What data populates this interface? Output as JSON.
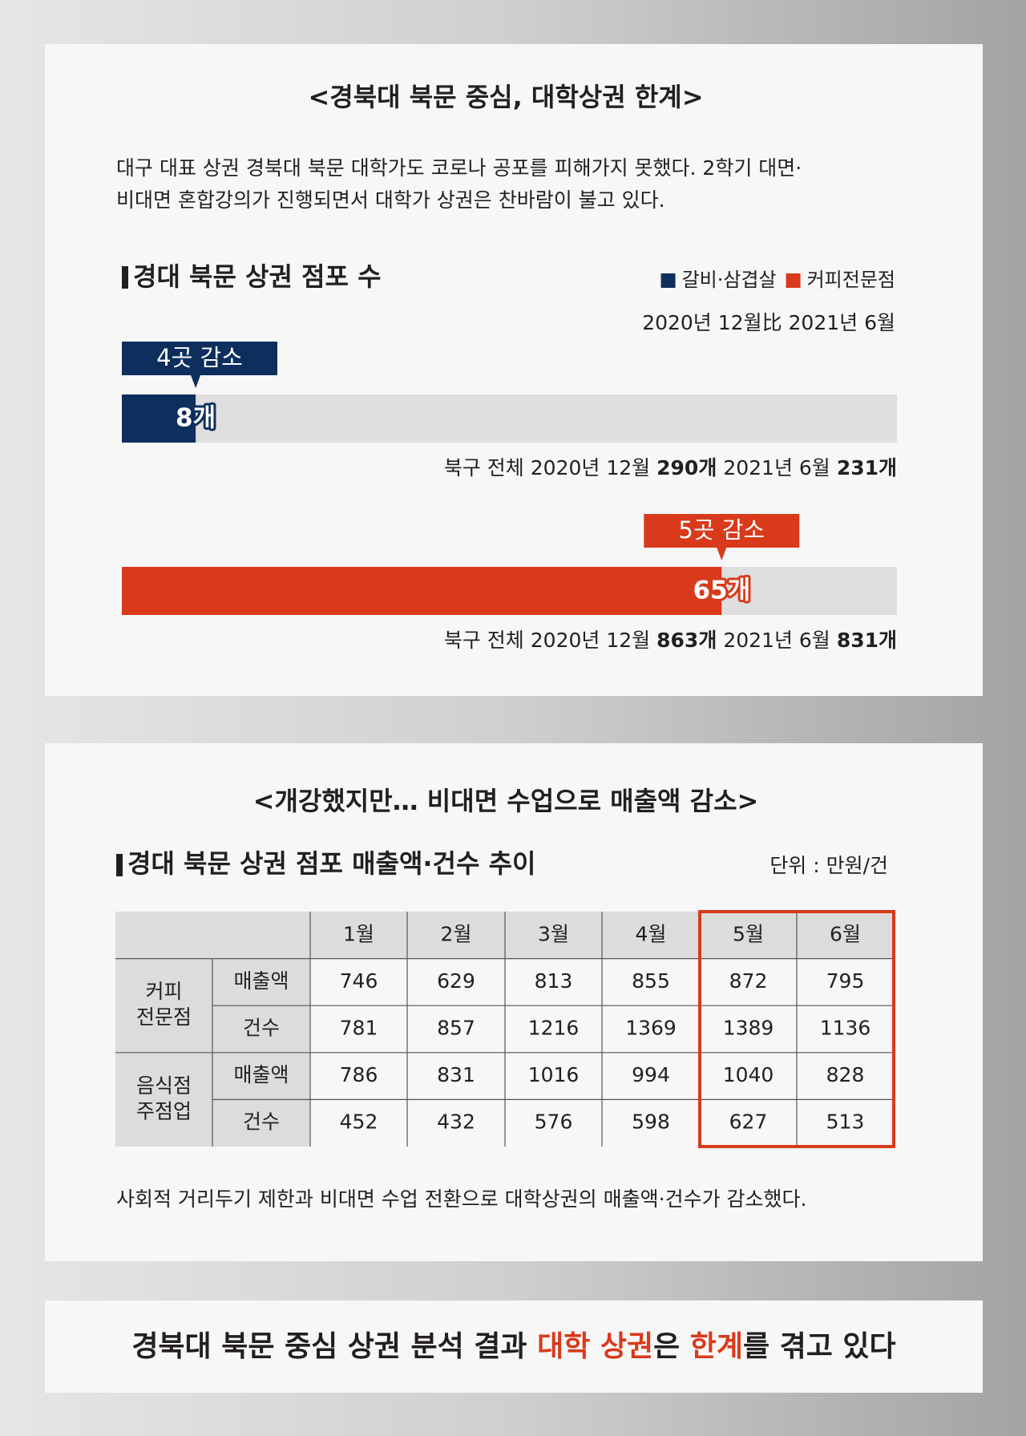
{
  "header": {
    "title": "<경북대 북문 중심, 대학상권 한계>",
    "description": [
      "대구 대표 상권 경북대 북문 대학가도 코로나 공포를 피해가지 못했다. 2학기 대면·",
      "비대면 혼합강의가 진행되면서 대학가 상권은 찬바람이 불고 있다."
    ]
  },
  "chart_data": {
    "type": "bar",
    "title": "경대 북문 상권 점포 수",
    "subtitle": "2020년 12월比 2021년 6월",
    "xlim": [
      0,
      84
    ],
    "legend": "top-right",
    "series": [
      {
        "name": "갈비·삼겹살",
        "color": "#0e2f5d",
        "values": [
          8
        ],
        "value_labels": [
          "8개"
        ],
        "annotation": "4곳 감소",
        "note": [
          "북구 전체 2020년 12월",
          "290개",
          "2021년 6월",
          "231개"
        ]
      },
      {
        "name": "커피전문점",
        "color": "#d93a1b",
        "values": [
          65
        ],
        "value_labels": [
          "65개"
        ],
        "annotation": "5곳 감소",
        "note": [
          "북구 전체 2020년 12월",
          "863개",
          "2021년 6월",
          "831개"
        ]
      }
    ]
  },
  "table": {
    "title": "<개강했지만… 비대면 수업으로 매출액 감소>",
    "subtitle": "경대 북문 상권 점포 매출액·건수 추이",
    "unit": "단위 : 만원/건",
    "columns": [
      "1월",
      "2월",
      "3월",
      "4월",
      "5월",
      "6월"
    ],
    "highlight_columns": [
      4,
      5
    ],
    "highlight_color": "#d93a1b",
    "groups": [
      {
        "name": [
          "커피",
          "전문점"
        ],
        "rows": [
          {
            "label": "매출액",
            "values": [
              746,
              629,
              813,
              855,
              872,
              795
            ]
          },
          {
            "label": "건수",
            "values": [
              781,
              857,
              1216,
              1369,
              1389,
              1136
            ]
          }
        ]
      },
      {
        "name": [
          "음식점",
          "주점업"
        ],
        "rows": [
          {
            "label": "매출액",
            "values": [
              786,
              831,
              1016,
              994,
              1040,
              828
            ]
          },
          {
            "label": "건수",
            "values": [
              452,
              432,
              576,
              598,
              627,
              513
            ]
          }
        ]
      }
    ],
    "caption": "사회적 거리두기 제한과 비대면 수업 전환으로 대학상권의 매출액·건수가 감소했다."
  },
  "banner": {
    "parts": [
      {
        "text": "경북대 북문 중심 상권 분석 결과 ",
        "color": "#231f20"
      },
      {
        "text": "대학 상권",
        "color": "#d93a1b"
      },
      {
        "text": "은 ",
        "color": "#231f20"
      },
      {
        "text": "한계",
        "color": "#d93a1b"
      },
      {
        "text": "를 겪고 있다",
        "color": "#231f20"
      }
    ]
  }
}
